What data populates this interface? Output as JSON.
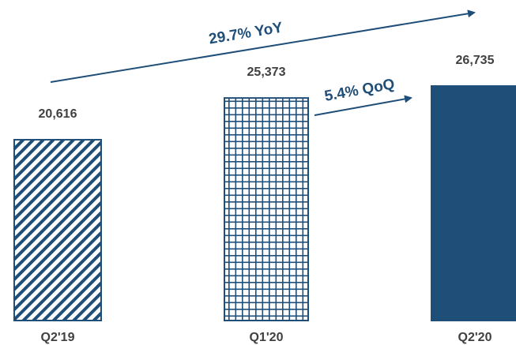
{
  "chart_data": {
    "type": "bar",
    "categories": [
      "Q2'19",
      "Q1'20",
      "Q2'20"
    ],
    "values": [
      20616,
      25373,
      26735
    ],
    "value_labels": [
      "20,616",
      "25,373",
      "26,735"
    ],
    "bar_styles": [
      "diagonal-hatch",
      "grid-hatch",
      "solid"
    ],
    "colors": {
      "bar": "#1f4e79",
      "text": "#404040",
      "arrow": "#1f4e79"
    },
    "grid": false,
    "annotations": [
      {
        "text": "29.7% YoY",
        "from": "Q2'19",
        "to": "Q2'20"
      },
      {
        "text": "5.4% QoQ",
        "from": "Q1'20",
        "to": "Q2'20"
      }
    ]
  }
}
